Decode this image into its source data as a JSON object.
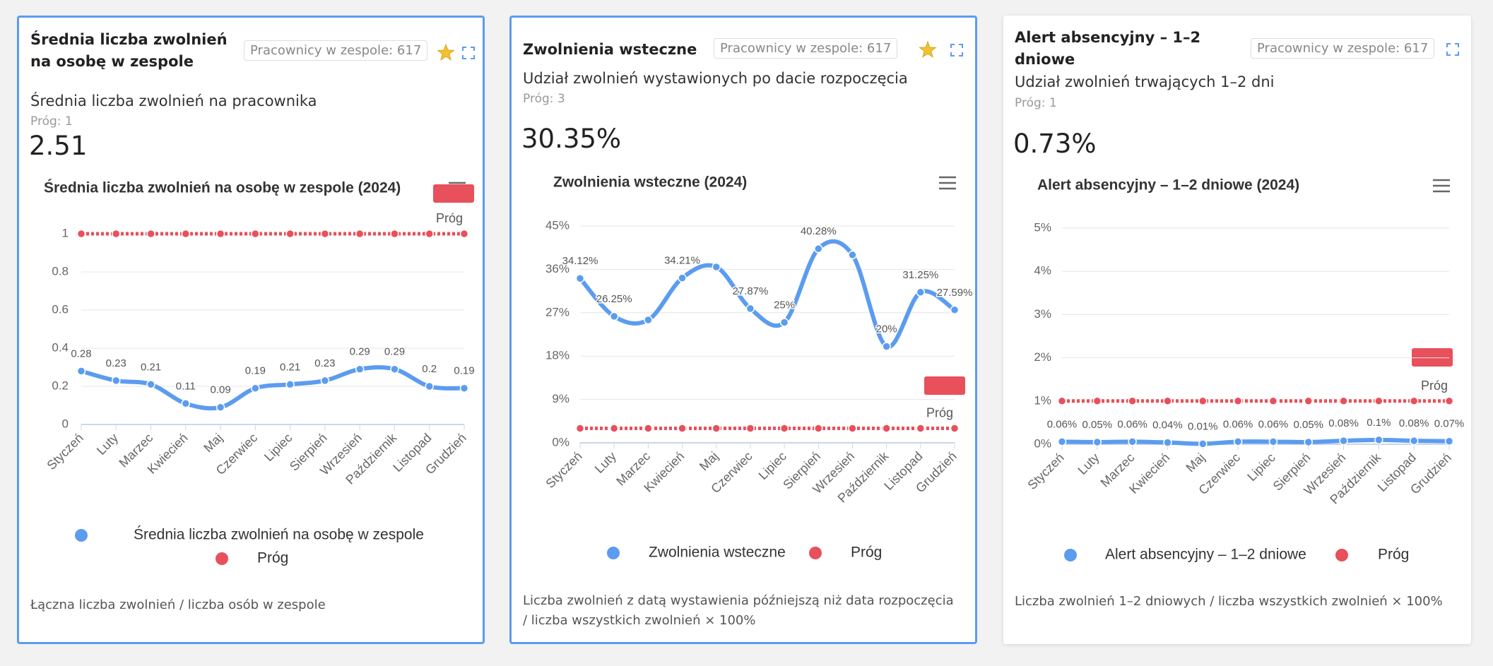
{
  "cards": [
    {
      "title": "Średnia liczba zwolnień na osobę w zespole",
      "badge": "Pracownicy w zespole: 617",
      "subtitle": "Średnia liczba zwolnień na pracownika",
      "threshold": "Próg: 1",
      "value": "2.51",
      "footer": "Łączna liczba zwolnień / liczba osób w zespole",
      "chart": {
        "type": "line",
        "title": "Średnia liczba zwolnień na osobę w zespole (2024)",
        "categories": [
          "Styczeń",
          "Luty",
          "Marzec",
          "Kwiecień",
          "Maj",
          "Czerwiec",
          "Lipiec",
          "Sierpień",
          "Wrzesień",
          "Październik",
          "Listopad",
          "Grudzień"
        ],
        "series": [
          {
            "name": "Średnia liczba zwolnień na osobę w zespole",
            "color": "#5b9cf0",
            "values": [
              0.28,
              0.23,
              0.21,
              0.11,
              0.09,
              0.19,
              0.21,
              0.23,
              0.29,
              0.29,
              0.2,
              0.19
            ]
          },
          {
            "name": "Próg",
            "color": "#e8505b",
            "values": [
              1,
              1,
              1,
              1,
              1,
              1,
              1,
              1,
              1,
              1,
              1,
              1
            ]
          }
        ],
        "ylim": [
          0,
          1
        ],
        "yticks": [
          0,
          0.2,
          0.4,
          0.6,
          0.8,
          1
        ],
        "grid": true
      }
    },
    {
      "title": "Zwolnienia wsteczne",
      "badge": "Pracownicy w zespole: 617",
      "subtitle": "Udział zwolnień wystawionych po dacie rozpoczęcia",
      "threshold": "Próg: 3",
      "value": "30.35%",
      "footer": "Liczba zwolnień z datą wystawienia późniejszą niż data rozpoczęcia / liczba wszystkich zwolnień × 100%",
      "chart": {
        "type": "line",
        "title": "Zwolnienia wsteczne (2024)",
        "categories": [
          "Styczeń",
          "Luty",
          "Marzec",
          "Kwiecień",
          "Maj",
          "Czerwiec",
          "Lipiec",
          "Sierpień",
          "Wrzesień",
          "Październik",
          "Listopad",
          "Grudzień"
        ],
        "series": [
          {
            "name": "Zwolnienia wsteczne",
            "color": "#5b9cf0",
            "values": [
              34.12,
              26.25,
              25.5,
              34.21,
              36.5,
              27.87,
              25,
              40.28,
              39,
              20,
              31.25,
              27.59
            ],
            "value_labels": [
              "34.12%",
              "26.25%",
              null,
              "34.21%",
              null,
              "27.87%",
              "25%",
              "40.28%",
              null,
              "20%",
              "31.25%",
              "27.59%"
            ]
          },
          {
            "name": "Próg",
            "color": "#e8505b",
            "values": [
              3,
              3,
              3,
              3,
              3,
              3,
              3,
              3,
              3,
              3,
              3,
              3
            ]
          }
        ],
        "ylim": [
          0,
          45
        ],
        "yticks": [
          {
            "value": 0,
            "label": "0%"
          },
          {
            "value": 9,
            "label": "9%"
          },
          {
            "value": 18,
            "label": "18%"
          },
          {
            "value": 27,
            "label": "27%"
          },
          {
            "value": 36,
            "label": "36%"
          },
          {
            "value": 45,
            "label": "45%"
          }
        ],
        "grid": true
      }
    },
    {
      "title": "Alert absencyjny – 1–2 dniowe",
      "badge": "Pracownicy w zespole: 617",
      "subtitle": "Udział zwolnień trwających 1–2 dni",
      "threshold": "Próg: 1",
      "value": "0.73%",
      "footer": "Liczba zwolnień 1–2 dniowych / liczba wszystkich zwolnień × 100%",
      "chart": {
        "type": "line",
        "title": "Alert absencyjny – 1–2 dniowe (2024)",
        "categories": [
          "Styczeń",
          "Luty",
          "Marzec",
          "Kwiecień",
          "Maj",
          "Czerwiec",
          "Lipiec",
          "Sierpień",
          "Wrzesień",
          "Październik",
          "Listopad",
          "Grudzień"
        ],
        "series": [
          {
            "name": "Alert absencyjny – 1–2 dniowe",
            "color": "#5b9cf0",
            "values": [
              0.06,
              0.05,
              0.06,
              0.04,
              0.01,
              0.06,
              0.06,
              0.05,
              0.08,
              0.1,
              0.08,
              0.07
            ],
            "value_labels": [
              "0.06%",
              "0.05%",
              "0.06%",
              "0.04%",
              "0.01%",
              "0.06%",
              "0.06%",
              "0.05%",
              "0.08%",
              "0.1%",
              "0.08%",
              "0.07%"
            ]
          },
          {
            "name": "Próg",
            "color": "#e8505b",
            "values": [
              1,
              1,
              1,
              1,
              1,
              1,
              1,
              1,
              1,
              1,
              1,
              1
            ]
          }
        ],
        "ylim": [
          0,
          5
        ],
        "yticks": [
          {
            "value": 0,
            "label": "0%"
          },
          {
            "value": 1,
            "label": "1%"
          },
          {
            "value": 2,
            "label": "2%"
          },
          {
            "value": 3,
            "label": "3%"
          },
          {
            "value": 4,
            "label": "4%"
          },
          {
            "value": 5,
            "label": "5%"
          }
        ],
        "grid": true
      }
    }
  ]
}
